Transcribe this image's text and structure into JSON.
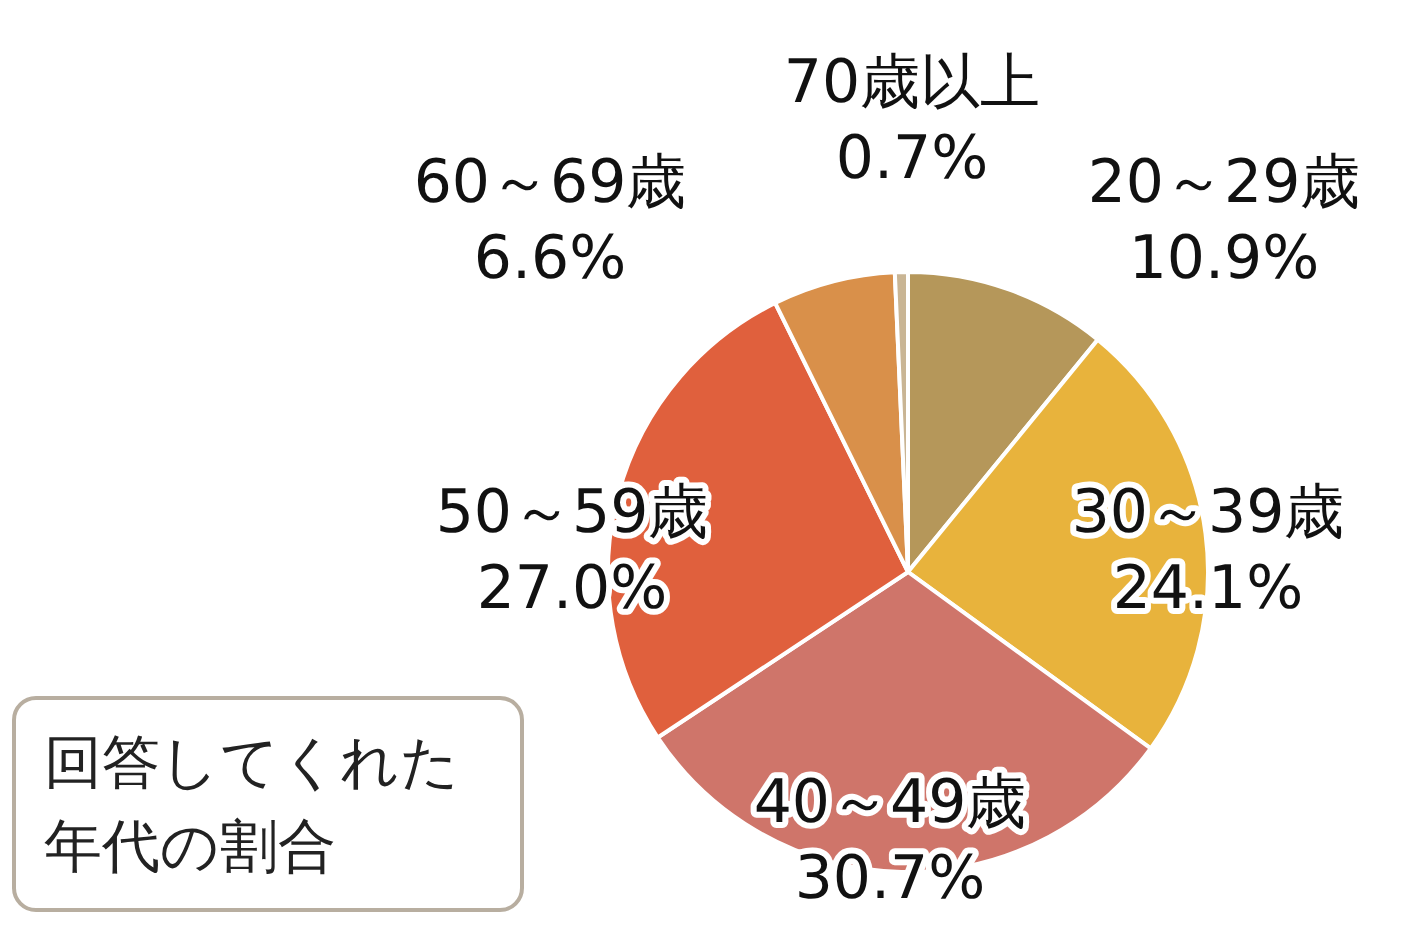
{
  "chart_data": {
    "type": "pie",
    "title": "回答してくれた年代の割合",
    "categories": [
      "20～29歳",
      "30～39歳",
      "40～49歳",
      "50～59歳",
      "60～69歳",
      "70歳以上"
    ],
    "values": [
      10.9,
      24.1,
      30.7,
      27.0,
      6.6,
      0.7
    ],
    "value_labels": [
      "10.9%",
      "24.1%",
      "30.7%",
      "27.0%",
      "6.6%",
      "0.7%"
    ],
    "colors": [
      "#b5975a",
      "#e8b33c",
      "#cf756a",
      "#e0603d",
      "#d9904a",
      "#c9b594"
    ]
  }
}
